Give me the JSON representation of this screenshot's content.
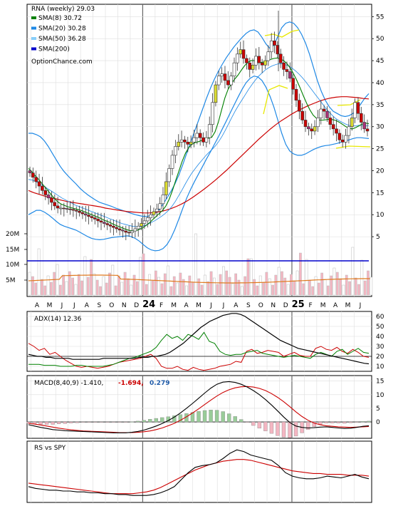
{
  "chart_data": [
    {
      "type": "candlestick",
      "title": "RNA (weekly) 29.03",
      "credit": "OptionChance.com",
      "legend": [
        {
          "label": "SMA(8) 30.72",
          "color": "#008000"
        },
        {
          "label": "SMA(20) 30.28",
          "color": "#1e88e5"
        },
        {
          "label": "SMA(50) 36.28",
          "color": "#87cefa"
        },
        {
          "label": "SMA(200)",
          "color": "#0000cc"
        }
      ],
      "price_ticks": [
        5,
        10,
        15,
        20,
        25,
        30,
        35,
        40,
        45,
        50,
        55
      ],
      "ylim": [
        0,
        57
      ],
      "volume_ticks": [
        "5M",
        "10M",
        "15M",
        "20M"
      ],
      "x_labels": [
        "A",
        "M",
        "J",
        "J",
        "A",
        "S",
        "O",
        "N",
        "D",
        "24",
        "F",
        "M",
        "A",
        "M",
        "J",
        "J",
        "A",
        "S",
        "O",
        "N",
        "D",
        "25",
        "F",
        "M",
        "A",
        "M",
        "J"
      ],
      "bold_x_labels": [
        "24",
        "25"
      ],
      "closes": [
        19.5,
        18.5,
        17.5,
        16.5,
        15.5,
        14.5,
        13.8,
        12.8,
        12.0,
        11.5,
        11.5,
        11.4,
        11.3,
        11.2,
        11.0,
        10.8,
        10.5,
        10.2,
        9.9,
        9.6,
        9.3,
        9.0,
        8.6,
        8.3,
        8.0,
        7.7,
        7.4,
        7.1,
        6.8,
        6.5,
        6.3,
        6.0,
        5.9,
        6.3,
        6.8,
        7.4,
        8.0,
        8.6,
        9.3,
        10.0,
        10.7,
        11.3,
        12.5,
        14.5,
        17.5,
        20.5,
        23.5,
        25.5,
        26.5,
        27.0,
        26.5,
        26.0,
        26.5,
        27.5,
        28.5,
        27.5,
        26.5,
        27.5,
        30.5,
        35.5,
        39.5,
        41.5,
        42.0,
        40.5,
        39.5,
        41.5,
        44.5,
        46.5,
        47.5,
        45.5,
        44.5,
        43.0,
        44.0,
        46.0,
        44.5,
        44.0,
        45.0,
        47.0,
        49.5,
        48.5,
        46.5,
        44.5,
        43.0,
        42.5,
        41.0,
        38.5,
        36.0,
        33.5,
        31.5,
        30.0,
        29.5,
        29.0,
        30.0,
        32.0,
        34.0,
        33.5,
        32.0,
        30.5,
        29.5,
        28.5,
        27.0,
        26.5,
        28.0,
        30.0,
        32.0,
        35.5,
        33.0,
        31.0,
        29.5,
        29.0
      ],
      "sma8": [
        20.5,
        19.8,
        18.9,
        18.1,
        17.2,
        16.3,
        15.4,
        14.5,
        13.6,
        12.9,
        12.4,
        12.1,
        11.8,
        11.6,
        11.4,
        11.2,
        11.0,
        10.7,
        10.4,
        10.1,
        9.8,
        9.5,
        9.2,
        8.8,
        8.5,
        8.2,
        7.8,
        7.5,
        7.2,
        6.9,
        6.6,
        6.4,
        6.3,
        6.4,
        6.7,
        7.1,
        7.6,
        8.2,
        8.9,
        9.6,
        10.3,
        11.0,
        12.0,
        13.5,
        15.5,
        17.8,
        20.0,
        22.2,
        24.0,
        25.3,
        26.0,
        26.4,
        26.6,
        26.9,
        27.3,
        27.4,
        27.6,
        28.8,
        31.0,
        33.8,
        36.5,
        38.5,
        39.8,
        40.8,
        41.7,
        42.8,
        43.8,
        44.6,
        45.0,
        45.0,
        44.8,
        44.6,
        44.7,
        45.0,
        45.3,
        45.5,
        45.6,
        45.4,
        45.0,
        44.3,
        43.3,
        42.0,
        40.5,
        38.8,
        37.0,
        35.3,
        33.8,
        32.6,
        31.9,
        31.5,
        31.5,
        31.6,
        31.7,
        31.6,
        31.4,
        31.0,
        30.5,
        30.0,
        29.6,
        29.5,
        29.8,
        30.2,
        30.6,
        30.8,
        30.7
      ],
      "sma20": [
        18.0,
        17.9,
        17.6,
        17.2,
        16.8,
        16.3,
        15.8,
        15.3,
        14.8,
        14.3,
        13.8,
        13.4,
        13.0,
        12.6,
        12.2,
        11.9,
        11.6,
        11.3,
        11.0,
        10.7,
        10.4,
        10.1,
        9.8,
        9.5,
        9.2,
        8.9,
        8.6,
        8.3,
        8.0,
        7.8,
        7.6,
        7.4,
        7.3,
        7.3,
        7.4,
        7.6,
        7.9,
        8.3,
        8.7,
        9.2,
        9.7,
        10.3,
        11.0,
        11.9,
        13.0,
        14.3,
        15.6,
        17.0,
        18.3,
        19.5,
        20.5,
        21.5,
        22.4,
        23.3,
        24.1,
        24.8,
        25.6,
        26.6,
        27.8,
        29.2,
        30.7,
        32.2,
        33.6,
        34.9,
        36.1,
        37.3,
        38.5,
        39.6,
        40.6,
        41.5,
        42.2,
        42.9,
        43.4,
        43.8,
        44.1,
        44.3,
        44.3,
        44.1,
        43.8,
        43.3,
        42.7,
        42.0,
        41.2,
        40.3,
        39.3,
        38.3,
        37.3,
        36.3,
        35.3,
        34.3,
        33.4,
        32.6,
        31.9,
        31.4,
        31.0,
        30.6,
        30.3,
        30.2,
        30.2,
        30.3,
        30.3,
        30.2,
        30.3
      ],
      "sma50": [
        15.5,
        15.0,
        14.6,
        14.2,
        13.9,
        13.6,
        13.3,
        13.0,
        12.8,
        12.6,
        12.4,
        12.2,
        12.0,
        11.8,
        11.5,
        11.3,
        11.1,
        10.9,
        10.7,
        10.6,
        10.5,
        10.4,
        10.4,
        10.5,
        10.7,
        11.0,
        11.4,
        11.9,
        12.5,
        13.2,
        14.0,
        14.9,
        15.8,
        16.8,
        17.8,
        18.9,
        20.0,
        21.2,
        22.4,
        23.6,
        24.8,
        26.0,
        27.2,
        28.3,
        29.4,
        30.4,
        31.3,
        32.1,
        32.9,
        33.6,
        34.2,
        34.8,
        35.3,
        35.8,
        36.2,
        36.5,
        36.7,
        36.8,
        36.8,
        36.7,
        36.6,
        36.4,
        36.3
      ],
      "sma200_level": 11.5,
      "bb_upper": [
        28.5,
        28.5,
        28.2,
        27.7,
        26.8,
        25.5,
        24.0,
        22.5,
        21.0,
        19.8,
        18.8,
        17.9,
        17.0,
        16.0,
        15.2,
        14.5,
        13.9,
        13.3,
        12.8,
        12.5,
        12.2,
        11.9,
        11.5,
        11.2,
        10.9,
        10.6,
        10.3,
        10.0,
        9.8,
        9.6,
        9.6,
        9.8,
        10.3,
        11.2,
        12.4,
        13.8,
        15.3,
        17.0,
        19.0,
        21.4,
        24.0,
        26.5,
        29.0,
        31.5,
        34.0,
        36.5,
        38.8,
        40.8,
        42.6,
        44.2,
        45.7,
        47.0,
        48.2,
        49.3,
        50.3,
        51.2,
        51.8,
        52.0,
        51.5,
        50.3,
        48.8,
        47.8,
        48.5,
        50.5,
        52.5,
        53.5,
        53.8,
        53.5,
        52.5,
        51.0,
        49.0,
        46.5,
        43.5,
        40.5,
        38.0,
        36.0,
        34.5,
        33.5,
        33.0,
        32.5,
        32.3,
        32.5,
        33.0,
        34.0,
        35.2,
        36.5,
        37.5
      ],
      "bb_lower": [
        10.0,
        10.5,
        11.0,
        11.0,
        10.6,
        10.0,
        9.3,
        8.5,
        7.8,
        7.4,
        7.1,
        6.8,
        6.5,
        6.0,
        5.5,
        5.0,
        4.6,
        4.4,
        4.3,
        4.4,
        4.6,
        4.8,
        4.9,
        5.0,
        5.1,
        5.2,
        5.0,
        4.6,
        4.0,
        3.2,
        2.5,
        2.0,
        1.8,
        1.9,
        2.3,
        3.2,
        4.7,
        6.7,
        9.0,
        11.5,
        13.8,
        15.8,
        17.6,
        19.3,
        21.0,
        22.7,
        24.3,
        26.0,
        27.7,
        29.5,
        31.3,
        33.2,
        35.0,
        36.8,
        38.5,
        40.0,
        41.0,
        41.5,
        41.3,
        40.5,
        39.0,
        37.0,
        34.5,
        31.5,
        28.5,
        26.0,
        24.5,
        23.8,
        23.5,
        23.5,
        23.8,
        24.3,
        24.8,
        25.2,
        25.5,
        25.7,
        25.8,
        26.0,
        26.2,
        26.5,
        26.8,
        27.0,
        27.3,
        27.5,
        27.5,
        27.4,
        27.3
      ],
      "volume_series_label": ""
    },
    {
      "type": "line",
      "title": "ADX(14) 12.36",
      "y_ticks": [
        10,
        20,
        30,
        40,
        50,
        60
      ],
      "ylim": [
        5,
        65
      ],
      "series_colors": {
        "adx": "#000000",
        "plus_di": "#008000",
        "minus_di": "#cc0000"
      },
      "adx": [
        22,
        21,
        20,
        20,
        19,
        19,
        18,
        18,
        18,
        18,
        17,
        17,
        17,
        17,
        17,
        17,
        17,
        18,
        18,
        18,
        18,
        18,
        18,
        18,
        18,
        19,
        19,
        19,
        20,
        20,
        21,
        22,
        24,
        27,
        30,
        33,
        37,
        41,
        45,
        49,
        52,
        55,
        57,
        59,
        61,
        62,
        63,
        63,
        62,
        60,
        57,
        54,
        51,
        48,
        45,
        42,
        39,
        36,
        34,
        32,
        30,
        28,
        27,
        26,
        25,
        24,
        23,
        22,
        21,
        20,
        19,
        18,
        17,
        16,
        15,
        14,
        13,
        12.5
      ],
      "plus_di": [
        12,
        12,
        12,
        11,
        11,
        11,
        10,
        10,
        10,
        11,
        11,
        10,
        10,
        10,
        10,
        11,
        12,
        14,
        16,
        18,
        19,
        21,
        23,
        25,
        29,
        36,
        42,
        38,
        40,
        36,
        42,
        40,
        37,
        44,
        35,
        33,
        25,
        22,
        21,
        22,
        22,
        24,
        25,
        26,
        23,
        22,
        21,
        20,
        19,
        20,
        21,
        20,
        19,
        18,
        22,
        24,
        22,
        20,
        25,
        27,
        22,
        25,
        28,
        24,
        23
      ],
      "minus_di": [
        33,
        30,
        26,
        28,
        22,
        24,
        20,
        16,
        13,
        10,
        9,
        10,
        9,
        8,
        9,
        10,
        12,
        14,
        15,
        16,
        17,
        18,
        20,
        22,
        18,
        10,
        8,
        8,
        10,
        7,
        6,
        9,
        7,
        6,
        7,
        8,
        10,
        11,
        12,
        15,
        14,
        25,
        27,
        23,
        24,
        26,
        25,
        24,
        20,
        22,
        24,
        21,
        20,
        20,
        28,
        30,
        27,
        26,
        29,
        25,
        23,
        27,
        24,
        20,
        19
      ]
    },
    {
      "type": "line",
      "title": "MACD(8,40,9) -1.410,",
      "signal_label": "-1.694,",
      "histogram_label": "0.279",
      "y_ticks": [
        0,
        5,
        10,
        15
      ],
      "ylim": [
        -6,
        17
      ],
      "macd": [
        -1.0,
        -1.5,
        -2.0,
        -2.4,
        -2.8,
        -3.0,
        -3.2,
        -3.3,
        -3.4,
        -3.5,
        -3.6,
        -3.7,
        -3.8,
        -3.9,
        -4.0,
        -4.0,
        -4.0,
        -3.8,
        -3.5,
        -3.0,
        -2.3,
        -1.5,
        -0.6,
        0.5,
        1.8,
        3.3,
        5.0,
        6.8,
        8.7,
        10.6,
        12.4,
        13.8,
        14.6,
        14.8,
        14.5,
        13.8,
        12.8,
        11.5,
        10.0,
        8.2,
        6.2,
        4.0,
        1.8,
        -0.2,
        -1.5,
        -2.0,
        -2.2,
        -2.1,
        -1.9,
        -1.8,
        -2.0,
        -2.2,
        -2.4,
        -2.3,
        -2.0,
        -1.6,
        -1.4
      ],
      "signal": [
        -0.5,
        -0.8,
        -1.1,
        -1.5,
        -1.9,
        -2.3,
        -2.6,
        -2.9,
        -3.1,
        -3.3,
        -3.4,
        -3.5,
        -3.6,
        -3.7,
        -3.8,
        -3.9,
        -3.9,
        -3.9,
        -3.8,
        -3.6,
        -3.3,
        -2.8,
        -2.2,
        -1.4,
        -0.5,
        0.6,
        1.9,
        3.3,
        4.8,
        6.4,
        8.0,
        9.5,
        10.8,
        11.8,
        12.5,
        12.9,
        13.0,
        12.8,
        12.3,
        11.5,
        10.4,
        9.0,
        7.4,
        5.6,
        3.7,
        2.0,
        0.6,
        -0.4,
        -1.0,
        -1.4,
        -1.6,
        -1.8,
        -1.9,
        -2.0,
        -1.9,
        -1.8,
        -1.7
      ],
      "series_colors": {
        "macd": "#000000",
        "signal": "#cc0000",
        "hist_pos": "#99cc99",
        "hist_neg": "#f4b6c2"
      }
    },
    {
      "type": "line",
      "title": "RS vs SPY",
      "rs": [
        48,
        46,
        45,
        44,
        44,
        43,
        43,
        42,
        42,
        41,
        41,
        40,
        40,
        39,
        39,
        38,
        38,
        38,
        39,
        41,
        44,
        48,
        56,
        64,
        70,
        72,
        73,
        75,
        80,
        86,
        90,
        88,
        84,
        82,
        80,
        78,
        72,
        64,
        60,
        58,
        57,
        57,
        58,
        60,
        59,
        58,
        60,
        62,
        59,
        57
      ],
      "rs_ma": [
        52,
        51,
        50,
        49,
        48,
        47,
        46,
        45,
        44,
        43,
        42,
        41,
        40,
        40,
        40,
        40,
        41,
        42,
        44,
        47,
        51,
        55,
        59,
        63,
        67,
        70,
        73,
        75,
        77,
        78,
        79,
        79,
        78,
        76,
        74,
        72,
        70,
        68,
        66,
        65,
        64,
        63,
        63,
        62,
        62,
        62,
        61,
        61,
        61,
        60
      ],
      "series_colors": {
        "rs": "#000000",
        "rs_ma": "#cc0000"
      }
    }
  ]
}
